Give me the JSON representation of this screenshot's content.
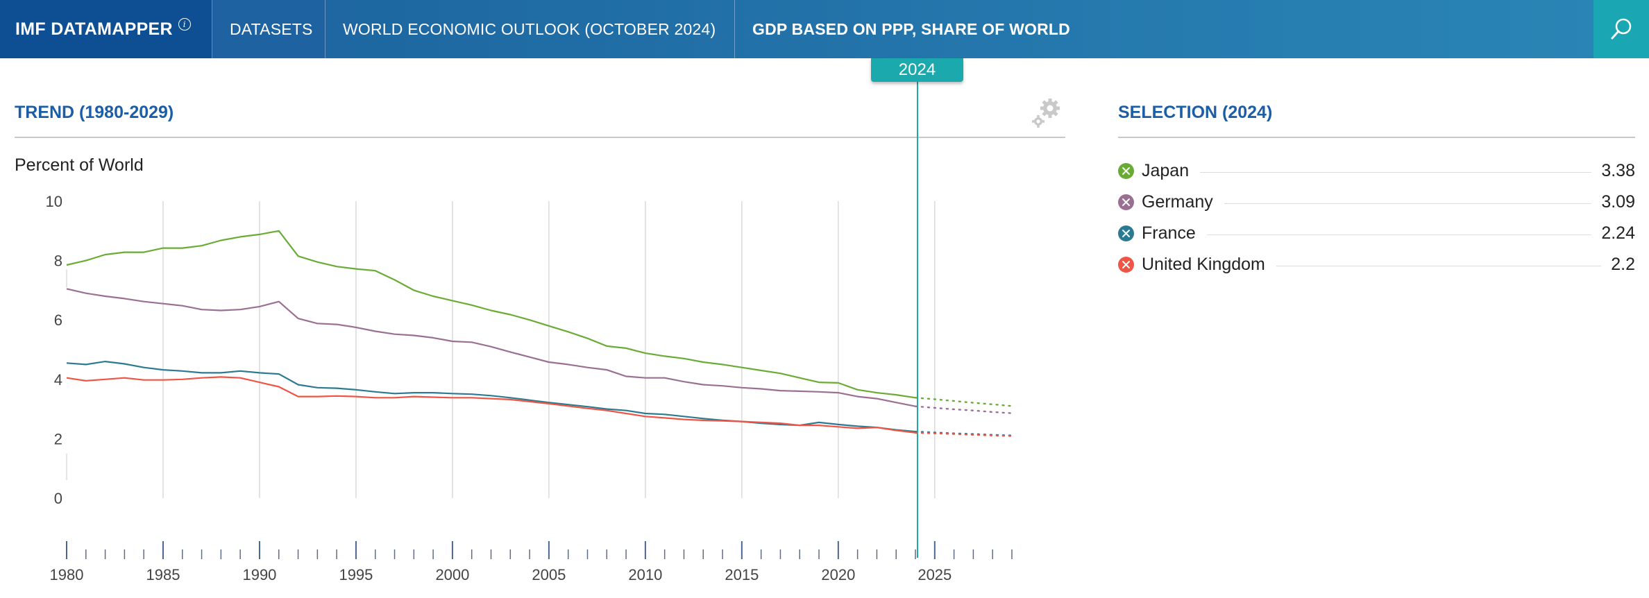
{
  "header": {
    "brand": "IMF DATAMAPPER",
    "info_glyph": "i",
    "nav": [
      "DATASETS",
      "WORLD ECONOMIC OUTLOOK (OCTOBER 2024)"
    ],
    "indicator": "GDP BASED ON PPP, SHARE OF WORLD",
    "search_icon": "search-icon"
  },
  "trend": {
    "title": "TREND (1980-2029)",
    "unit": "Percent of World",
    "settings_icon": "gear-icon",
    "selected_year": "2024"
  },
  "selection": {
    "title": "SELECTION (2024)",
    "items": [
      {
        "name": "Japan",
        "value": "3.38",
        "color": "#6aab35"
      },
      {
        "name": "Germany",
        "value": "3.09",
        "color": "#9a6f92"
      },
      {
        "name": "France",
        "value": "2.24",
        "color": "#2b7a91"
      },
      {
        "name": "United Kingdom",
        "value": "2.2",
        "color": "#ef5444"
      }
    ]
  },
  "chart_data": {
    "type": "line",
    "title": "TREND (1980-2029)",
    "ylabel": "Percent of World",
    "ylim": [
      0,
      10
    ],
    "yticks": [
      0,
      2,
      4,
      6,
      8,
      10
    ],
    "xlim": [
      1980,
      2029
    ],
    "xticks": [
      1980,
      1985,
      1990,
      1995,
      2000,
      2005,
      2010,
      2015,
      2020,
      2025
    ],
    "grid": "vertical",
    "highlight_year": 2024,
    "x": [
      1980,
      1981,
      1982,
      1983,
      1984,
      1985,
      1986,
      1987,
      1988,
      1989,
      1990,
      1991,
      1992,
      1993,
      1994,
      1995,
      1996,
      1997,
      1998,
      1999,
      2000,
      2001,
      2002,
      2003,
      2004,
      2005,
      2006,
      2007,
      2008,
      2009,
      2010,
      2011,
      2012,
      2013,
      2014,
      2015,
      2016,
      2017,
      2018,
      2019,
      2020,
      2021,
      2022,
      2023,
      2024,
      2025,
      2026,
      2027,
      2028,
      2029
    ],
    "projection_start": 2024,
    "series": [
      {
        "name": "Japan",
        "color": "#6aab35",
        "values": [
          7.85,
          8.0,
          8.2,
          8.28,
          8.28,
          8.42,
          8.42,
          8.5,
          8.68,
          8.8,
          8.88,
          9.0,
          8.15,
          7.95,
          7.8,
          7.72,
          7.66,
          7.35,
          7.0,
          6.8,
          6.65,
          6.5,
          6.32,
          6.18,
          6.0,
          5.8,
          5.6,
          5.38,
          5.12,
          5.05,
          4.88,
          4.78,
          4.7,
          4.58,
          4.5,
          4.4,
          4.3,
          4.2,
          4.05,
          3.9,
          3.88,
          3.65,
          3.55,
          3.48,
          3.38,
          3.33,
          3.27,
          3.21,
          3.16,
          3.1
        ]
      },
      {
        "name": "Germany",
        "color": "#9a6f92",
        "values": [
          7.05,
          6.9,
          6.8,
          6.72,
          6.62,
          6.55,
          6.48,
          6.35,
          6.32,
          6.35,
          6.45,
          6.62,
          6.05,
          5.88,
          5.85,
          5.75,
          5.62,
          5.52,
          5.48,
          5.4,
          5.28,
          5.25,
          5.1,
          4.92,
          4.75,
          4.58,
          4.5,
          4.4,
          4.32,
          4.1,
          4.05,
          4.05,
          3.92,
          3.82,
          3.78,
          3.72,
          3.68,
          3.62,
          3.6,
          3.58,
          3.55,
          3.42,
          3.35,
          3.22,
          3.09,
          3.04,
          2.99,
          2.95,
          2.9,
          2.86
        ]
      },
      {
        "name": "France",
        "color": "#2b7a91",
        "values": [
          4.55,
          4.5,
          4.6,
          4.52,
          4.4,
          4.32,
          4.28,
          4.22,
          4.22,
          4.28,
          4.22,
          4.18,
          3.82,
          3.72,
          3.7,
          3.65,
          3.58,
          3.52,
          3.55,
          3.55,
          3.52,
          3.5,
          3.45,
          3.38,
          3.3,
          3.22,
          3.15,
          3.08,
          3.0,
          2.95,
          2.85,
          2.82,
          2.75,
          2.68,
          2.62,
          2.58,
          2.52,
          2.48,
          2.45,
          2.55,
          2.48,
          2.42,
          2.38,
          2.3,
          2.24,
          2.21,
          2.18,
          2.16,
          2.13,
          2.11
        ]
      },
      {
        "name": "United Kingdom",
        "color": "#ef5444",
        "values": [
          4.05,
          3.95,
          4.0,
          4.05,
          3.98,
          3.98,
          4.0,
          4.05,
          4.08,
          4.05,
          3.9,
          3.75,
          3.42,
          3.42,
          3.44,
          3.42,
          3.38,
          3.38,
          3.42,
          3.4,
          3.38,
          3.38,
          3.35,
          3.32,
          3.25,
          3.18,
          3.1,
          3.02,
          2.95,
          2.85,
          2.75,
          2.7,
          2.65,
          2.62,
          2.6,
          2.58,
          2.55,
          2.52,
          2.45,
          2.45,
          2.4,
          2.35,
          2.38,
          2.28,
          2.2,
          2.18,
          2.16,
          2.13,
          2.11,
          2.09
        ]
      }
    ]
  }
}
